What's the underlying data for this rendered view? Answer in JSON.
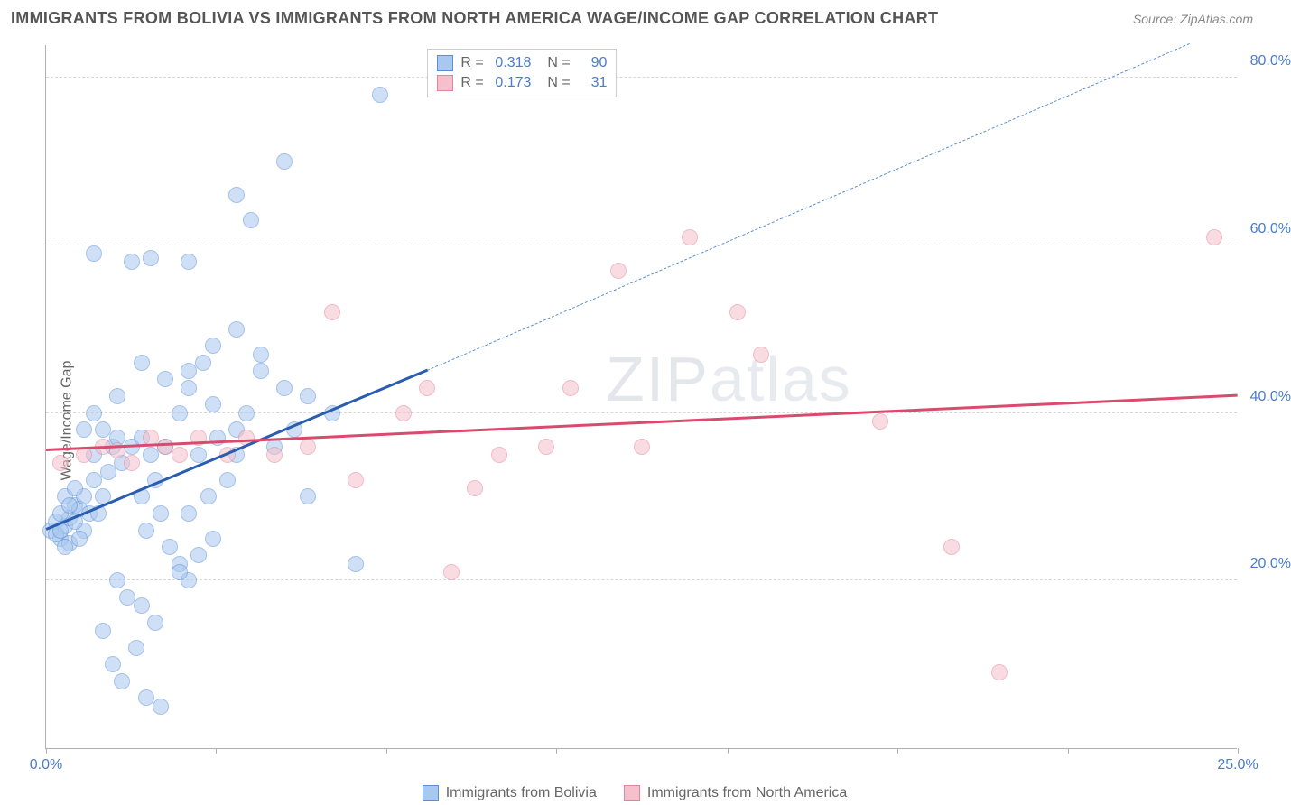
{
  "title": "IMMIGRANTS FROM BOLIVIA VS IMMIGRANTS FROM NORTH AMERICA WAGE/INCOME GAP CORRELATION CHART",
  "source_label": "Source: ",
  "source_name": "ZipAtlas.com",
  "ylabel": "Wage/Income Gap",
  "watermark": "ZIPatlas",
  "chart": {
    "type": "scatter",
    "background_color": "#ffffff",
    "grid_color": "#d8d8d8",
    "axis_color": "#b0b0b0",
    "tick_label_color": "#4a7bd0",
    "xlim": [
      0,
      25
    ],
    "ylim": [
      0,
      84
    ],
    "xticks": [
      0,
      25
    ],
    "xtick_labels": [
      "0.0%",
      "25.0%"
    ],
    "xtick_marks": [
      0,
      3.57,
      7.14,
      10.71,
      14.29,
      17.86,
      21.43,
      25
    ],
    "yticks": [
      20,
      40,
      60,
      80
    ],
    "ytick_labels": [
      "20.0%",
      "40.0%",
      "60.0%",
      "80.0%"
    ],
    "marker_radius": 9,
    "marker_opacity": 0.55,
    "series": [
      {
        "name": "Immigrants from Bolivia",
        "color_fill": "#a8c8ef",
        "color_stroke": "#5a8fd6",
        "r": "0.318",
        "n": "90",
        "trend": {
          "x1": 0,
          "y1": 26,
          "x2": 8,
          "y2": 45,
          "color": "#2a5db0",
          "width": 2.5
        },
        "trend_dash": {
          "x1": 8,
          "y1": 45,
          "x2": 24,
          "y2": 84,
          "color": "#5a8fd6",
          "width": 1.5
        },
        "points": [
          [
            0.1,
            26
          ],
          [
            0.2,
            27
          ],
          [
            0.3,
            25
          ],
          [
            0.4,
            26.5
          ],
          [
            0.5,
            27.5
          ],
          [
            0.3,
            28
          ],
          [
            0.6,
            29
          ],
          [
            0.4,
            30
          ],
          [
            0.7,
            28.5
          ],
          [
            0.2,
            25.5
          ],
          [
            0.5,
            24.5
          ],
          [
            0.8,
            26
          ],
          [
            0.6,
            27
          ],
          [
            0.9,
            28
          ],
          [
            0.3,
            26
          ],
          [
            0.7,
            25
          ],
          [
            0.4,
            24
          ],
          [
            0.5,
            29
          ],
          [
            0.8,
            30
          ],
          [
            0.6,
            31
          ],
          [
            1.0,
            32
          ],
          [
            1.2,
            30
          ],
          [
            1.1,
            28
          ],
          [
            1.3,
            33
          ],
          [
            1.0,
            35
          ],
          [
            1.4,
            36
          ],
          [
            1.5,
            37
          ],
          [
            1.2,
            38
          ],
          [
            1.8,
            36
          ],
          [
            1.6,
            34
          ],
          [
            2.0,
            37
          ],
          [
            2.2,
            35
          ],
          [
            2.5,
            36
          ],
          [
            2.3,
            32
          ],
          [
            2.0,
            30
          ],
          [
            2.4,
            28
          ],
          [
            2.1,
            26
          ],
          [
            2.6,
            24
          ],
          [
            2.8,
            22
          ],
          [
            3.0,
            20
          ],
          [
            1.5,
            20
          ],
          [
            1.7,
            18
          ],
          [
            2.0,
            17
          ],
          [
            2.3,
            15
          ],
          [
            1.2,
            14
          ],
          [
            1.9,
            12
          ],
          [
            1.4,
            10
          ],
          [
            1.6,
            8
          ],
          [
            2.1,
            6
          ],
          [
            2.4,
            5
          ],
          [
            2.8,
            21
          ],
          [
            3.2,
            23
          ],
          [
            3.5,
            25
          ],
          [
            3.0,
            28
          ],
          [
            3.4,
            30
          ],
          [
            3.8,
            32
          ],
          [
            3.2,
            35
          ],
          [
            3.6,
            37
          ],
          [
            4.0,
            38
          ],
          [
            4.2,
            40
          ],
          [
            3.0,
            45
          ],
          [
            3.3,
            46
          ],
          [
            3.5,
            48
          ],
          [
            4.0,
            50
          ],
          [
            4.5,
            47
          ],
          [
            5.0,
            43
          ],
          [
            5.5,
            42
          ],
          [
            6.0,
            40
          ],
          [
            5.2,
            38
          ],
          [
            4.8,
            36
          ],
          [
            1.0,
            59
          ],
          [
            1.8,
            58
          ],
          [
            2.2,
            58.5
          ],
          [
            3.0,
            58
          ],
          [
            4.0,
            66
          ],
          [
            4.3,
            63
          ],
          [
            5.0,
            70
          ],
          [
            7.0,
            78
          ],
          [
            5.5,
            30
          ],
          [
            6.5,
            22
          ],
          [
            2.0,
            46
          ],
          [
            2.5,
            44
          ],
          [
            3.0,
            43
          ],
          [
            4.5,
            45
          ],
          [
            1.5,
            42
          ],
          [
            1.0,
            40
          ],
          [
            0.8,
            38
          ],
          [
            2.8,
            40
          ],
          [
            3.5,
            41
          ],
          [
            4.0,
            35
          ]
        ]
      },
      {
        "name": "Immigrants from North America",
        "color_fill": "#f5c0cc",
        "color_stroke": "#e2849c",
        "r": "0.173",
        "n": "31",
        "trend": {
          "x1": 0,
          "y1": 35.5,
          "x2": 25,
          "y2": 42,
          "color": "#d94a6e",
          "width": 2.5
        },
        "points": [
          [
            0.3,
            34
          ],
          [
            0.8,
            35
          ],
          [
            1.2,
            36
          ],
          [
            1.5,
            35.5
          ],
          [
            1.8,
            34
          ],
          [
            2.2,
            37
          ],
          [
            2.5,
            36
          ],
          [
            2.8,
            35
          ],
          [
            3.2,
            37
          ],
          [
            3.8,
            35
          ],
          [
            4.2,
            37
          ],
          [
            4.8,
            35
          ],
          [
            5.5,
            36
          ],
          [
            6.0,
            52
          ],
          [
            6.5,
            32
          ],
          [
            7.5,
            40
          ],
          [
            8.0,
            43
          ],
          [
            8.5,
            21
          ],
          [
            9.0,
            31
          ],
          [
            9.5,
            35
          ],
          [
            10.5,
            36
          ],
          [
            11.0,
            43
          ],
          [
            12.0,
            57
          ],
          [
            12.5,
            36
          ],
          [
            13.5,
            61
          ],
          [
            14.5,
            52
          ],
          [
            15.0,
            47
          ],
          [
            17.5,
            39
          ],
          [
            19.0,
            24
          ],
          [
            20.0,
            9
          ],
          [
            24.5,
            61
          ]
        ]
      }
    ]
  },
  "legend_top": {
    "r_label": "R =",
    "n_label": "N ="
  }
}
